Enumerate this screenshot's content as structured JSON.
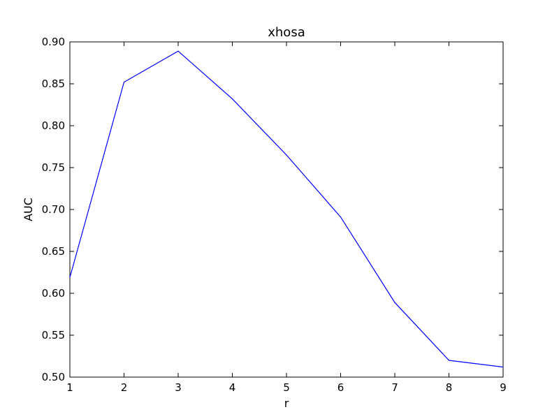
{
  "chart_data": {
    "type": "line",
    "title": "xhosa",
    "xlabel": "r",
    "ylabel": "AUC",
    "xlim": [
      1,
      9
    ],
    "ylim": [
      0.5,
      0.9
    ],
    "xticks": [
      "1",
      "2",
      "3",
      "4",
      "5",
      "6",
      "7",
      "8",
      "9"
    ],
    "yticks": [
      "0.50",
      "0.55",
      "0.60",
      "0.65",
      "0.70",
      "0.75",
      "0.80",
      "0.85",
      "0.90"
    ],
    "grid": false,
    "series": [
      {
        "color": "#0000ff",
        "x": [
          1,
          2,
          3,
          4,
          5,
          6,
          7,
          8,
          9
        ],
        "y": [
          0.619,
          0.852,
          0.889,
          0.832,
          0.765,
          0.691,
          0.589,
          0.52,
          0.512
        ]
      }
    ]
  }
}
